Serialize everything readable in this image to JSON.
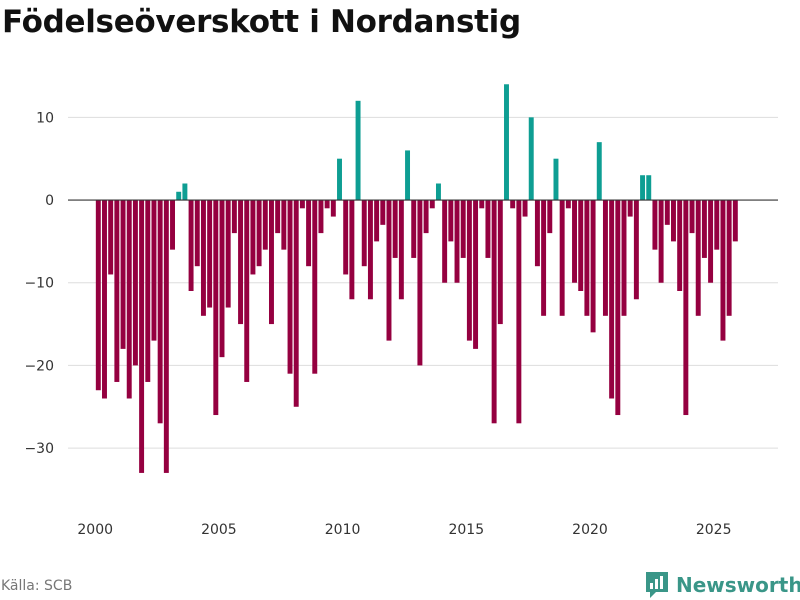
{
  "header": {
    "title": "Födelseöverskott i Nordanstig"
  },
  "footer": {
    "source": "Källa: SCB",
    "brand": "Newsworthy"
  },
  "colors": {
    "positive": "#0e9e93",
    "negative": "#950040",
    "grid": "#dddddd",
    "zero": "#333333",
    "brand": "#3a9688"
  },
  "chart_data": {
    "type": "bar",
    "title": "Födelseöverskott i Nordanstig",
    "xlabel": "",
    "ylabel": "",
    "ylim": [
      -37,
      15
    ],
    "xlim": [
      1998.9,
      2027.6
    ],
    "yticks": [
      10,
      0,
      -10,
      -20,
      -30
    ],
    "ytick_labels": [
      "10",
      "0",
      "−10",
      "−20",
      "−30"
    ],
    "xticks": [
      2000,
      2005,
      2010,
      2015,
      2020,
      2025
    ],
    "xtick_labels": [
      "2000",
      "2005",
      "2010",
      "2015",
      "2020",
      "2025"
    ],
    "grid": true,
    "x_start": 2000.125,
    "x_step": 0.25,
    "values": [
      -23,
      -24,
      -9,
      -22,
      -18,
      -24,
      -20,
      -33,
      -22,
      -17,
      -27,
      -33,
      -6,
      1,
      2,
      -11,
      -8,
      -14,
      -13,
      -26,
      -19,
      -13,
      -4,
      -15,
      -22,
      -9,
      -8,
      -6,
      -15,
      -4,
      -6,
      -21,
      -25,
      -1,
      -8,
      -21,
      -4,
      -1,
      -2,
      5,
      -9,
      -12,
      12,
      -8,
      -12,
      -5,
      -3,
      -17,
      -7,
      -12,
      6,
      -7,
      -20,
      -4,
      -1,
      2,
      -10,
      -5,
      -10,
      -7,
      -17,
      -18,
      -1,
      -7,
      -27,
      -15,
      14,
      -1,
      -27,
      -2,
      10,
      -8,
      -14,
      -4,
      5,
      -14,
      -1,
      -10,
      -11,
      -14,
      -16,
      7,
      -14,
      -24,
      -26,
      -14,
      -2,
      -12,
      3,
      3,
      -6,
      -10,
      -3,
      -5,
      -11,
      -26,
      -4,
      -14,
      -7,
      -10,
      -6,
      -17,
      -14,
      -5
    ]
  }
}
